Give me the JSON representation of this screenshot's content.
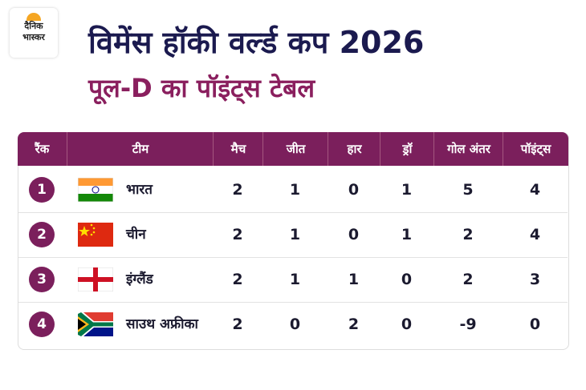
{
  "logo": {
    "line1": "दैनिक",
    "line2": "भास्कर"
  },
  "title": "विमेंस हॉकी वर्ल्ड कप 2026",
  "subtitle": "पूल-D का पॉइंट्स टेबल",
  "table": {
    "headers": [
      "रैंक",
      "टीम",
      "मैच",
      "जीत",
      "हार",
      "ड्रॉ",
      "गोल अंतर",
      "पॉइंट्स"
    ],
    "rows": [
      [
        1,
        "भारत",
        2,
        1,
        0,
        1,
        5,
        4
      ],
      [
        2,
        "चीन",
        2,
        1,
        0,
        1,
        2,
        4
      ],
      [
        3,
        "इंग्लैंड",
        2,
        1,
        1,
        0,
        2,
        3
      ],
      [
        4,
        "साउथ अफ्रीका",
        2,
        0,
        2,
        0,
        -9,
        0
      ]
    ]
  }
}
